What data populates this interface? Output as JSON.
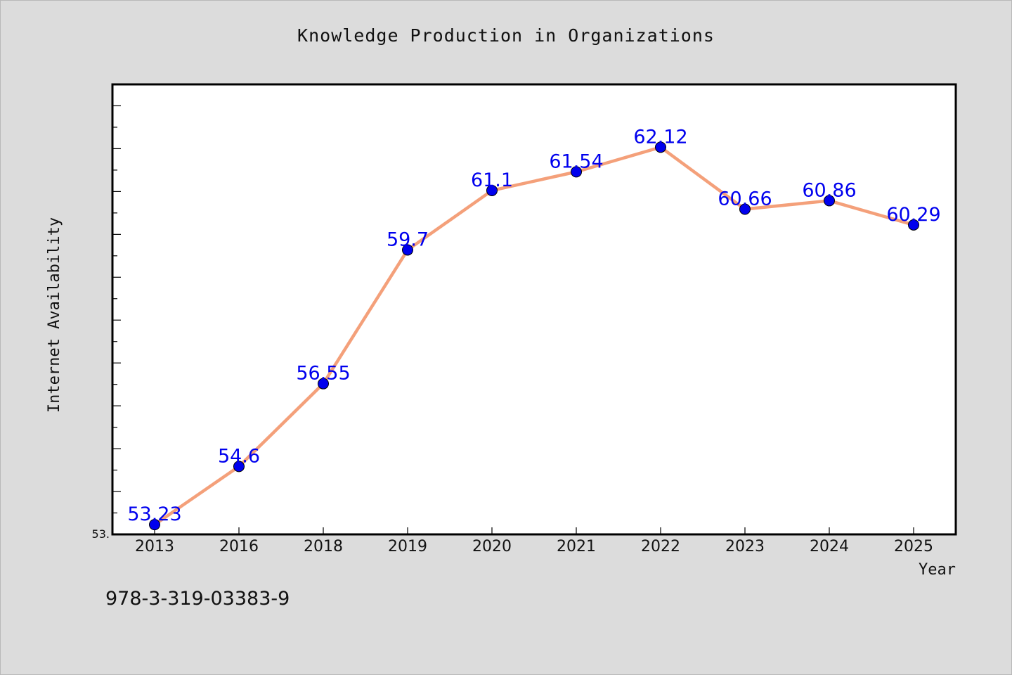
{
  "chart_data": {
    "type": "line",
    "title": "Knowledge Production in Organizations",
    "xlabel": "Year",
    "ylabel": "Internet Availability",
    "categories": [
      "2013",
      "2016",
      "2018",
      "2019",
      "2020",
      "2021",
      "2022",
      "2023",
      "2024",
      "2025"
    ],
    "series": [
      {
        "values": [
          53.23,
          54.6,
          56.55,
          59.7,
          61.1,
          61.54,
          62.12,
          60.66,
          60.86,
          60.29
        ],
        "labels": [
          "53.23",
          "54.6",
          "56.55",
          "59.7",
          "61.1",
          "61.54",
          "62.12",
          "60.66",
          "60.86",
          "60.29"
        ],
        "line_color": "#f4a07a",
        "marker_color": "#0000ee",
        "label_color": "#0000ee"
      }
    ],
    "ylim": [
      53,
      63.6
    ],
    "y_tick_labels": [
      "53."
    ],
    "grid": false,
    "legend": "none"
  },
  "footer": {
    "isbn": "978-3-319-03383-9"
  }
}
